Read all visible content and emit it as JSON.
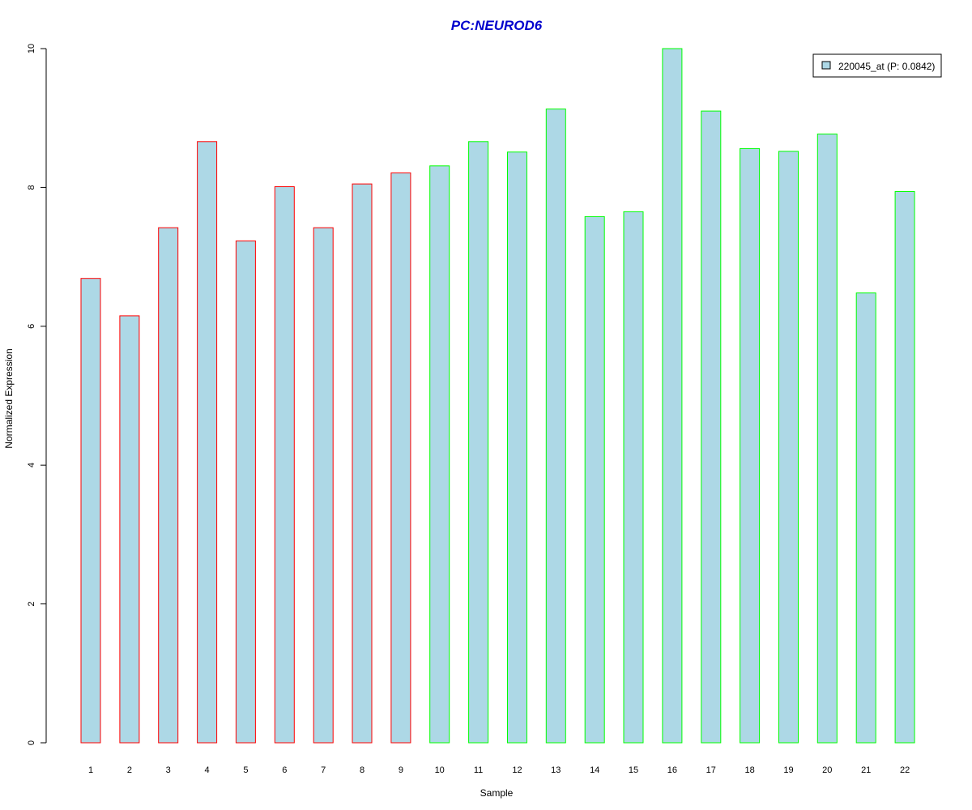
{
  "chart_data": {
    "type": "bar",
    "title": "PC:NEUROD6",
    "xlabel": "Sample",
    "ylabel": "Normalized Expression",
    "categories": [
      "1",
      "2",
      "3",
      "4",
      "5",
      "6",
      "7",
      "8",
      "9",
      "10",
      "11",
      "12",
      "13",
      "14",
      "15",
      "16",
      "17",
      "18",
      "19",
      "20",
      "21",
      "22"
    ],
    "series": [
      {
        "name": "220045_at (P: 0.0842)",
        "values": [
          6.69,
          6.15,
          7.42,
          8.66,
          7.23,
          8.01,
          7.42,
          8.05,
          8.21,
          8.31,
          8.66,
          8.51,
          9.13,
          7.58,
          7.65,
          10.0,
          9.1,
          8.56,
          8.52,
          8.77,
          6.48,
          7.94
        ]
      }
    ],
    "groups": [
      {
        "samples": [
          1,
          9
        ],
        "outline_color": "#ff0000"
      },
      {
        "samples": [
          10,
          22
        ],
        "outline_color": "#00ff00"
      }
    ],
    "ylim": [
      0,
      10
    ],
    "yticks": [
      0,
      2,
      4,
      6,
      8,
      10
    ],
    "grid": false,
    "legend_position": "top-right",
    "colors": {
      "bar_fill": "#add8e6",
      "title": "#0000cd",
      "axis": "#000000"
    }
  }
}
